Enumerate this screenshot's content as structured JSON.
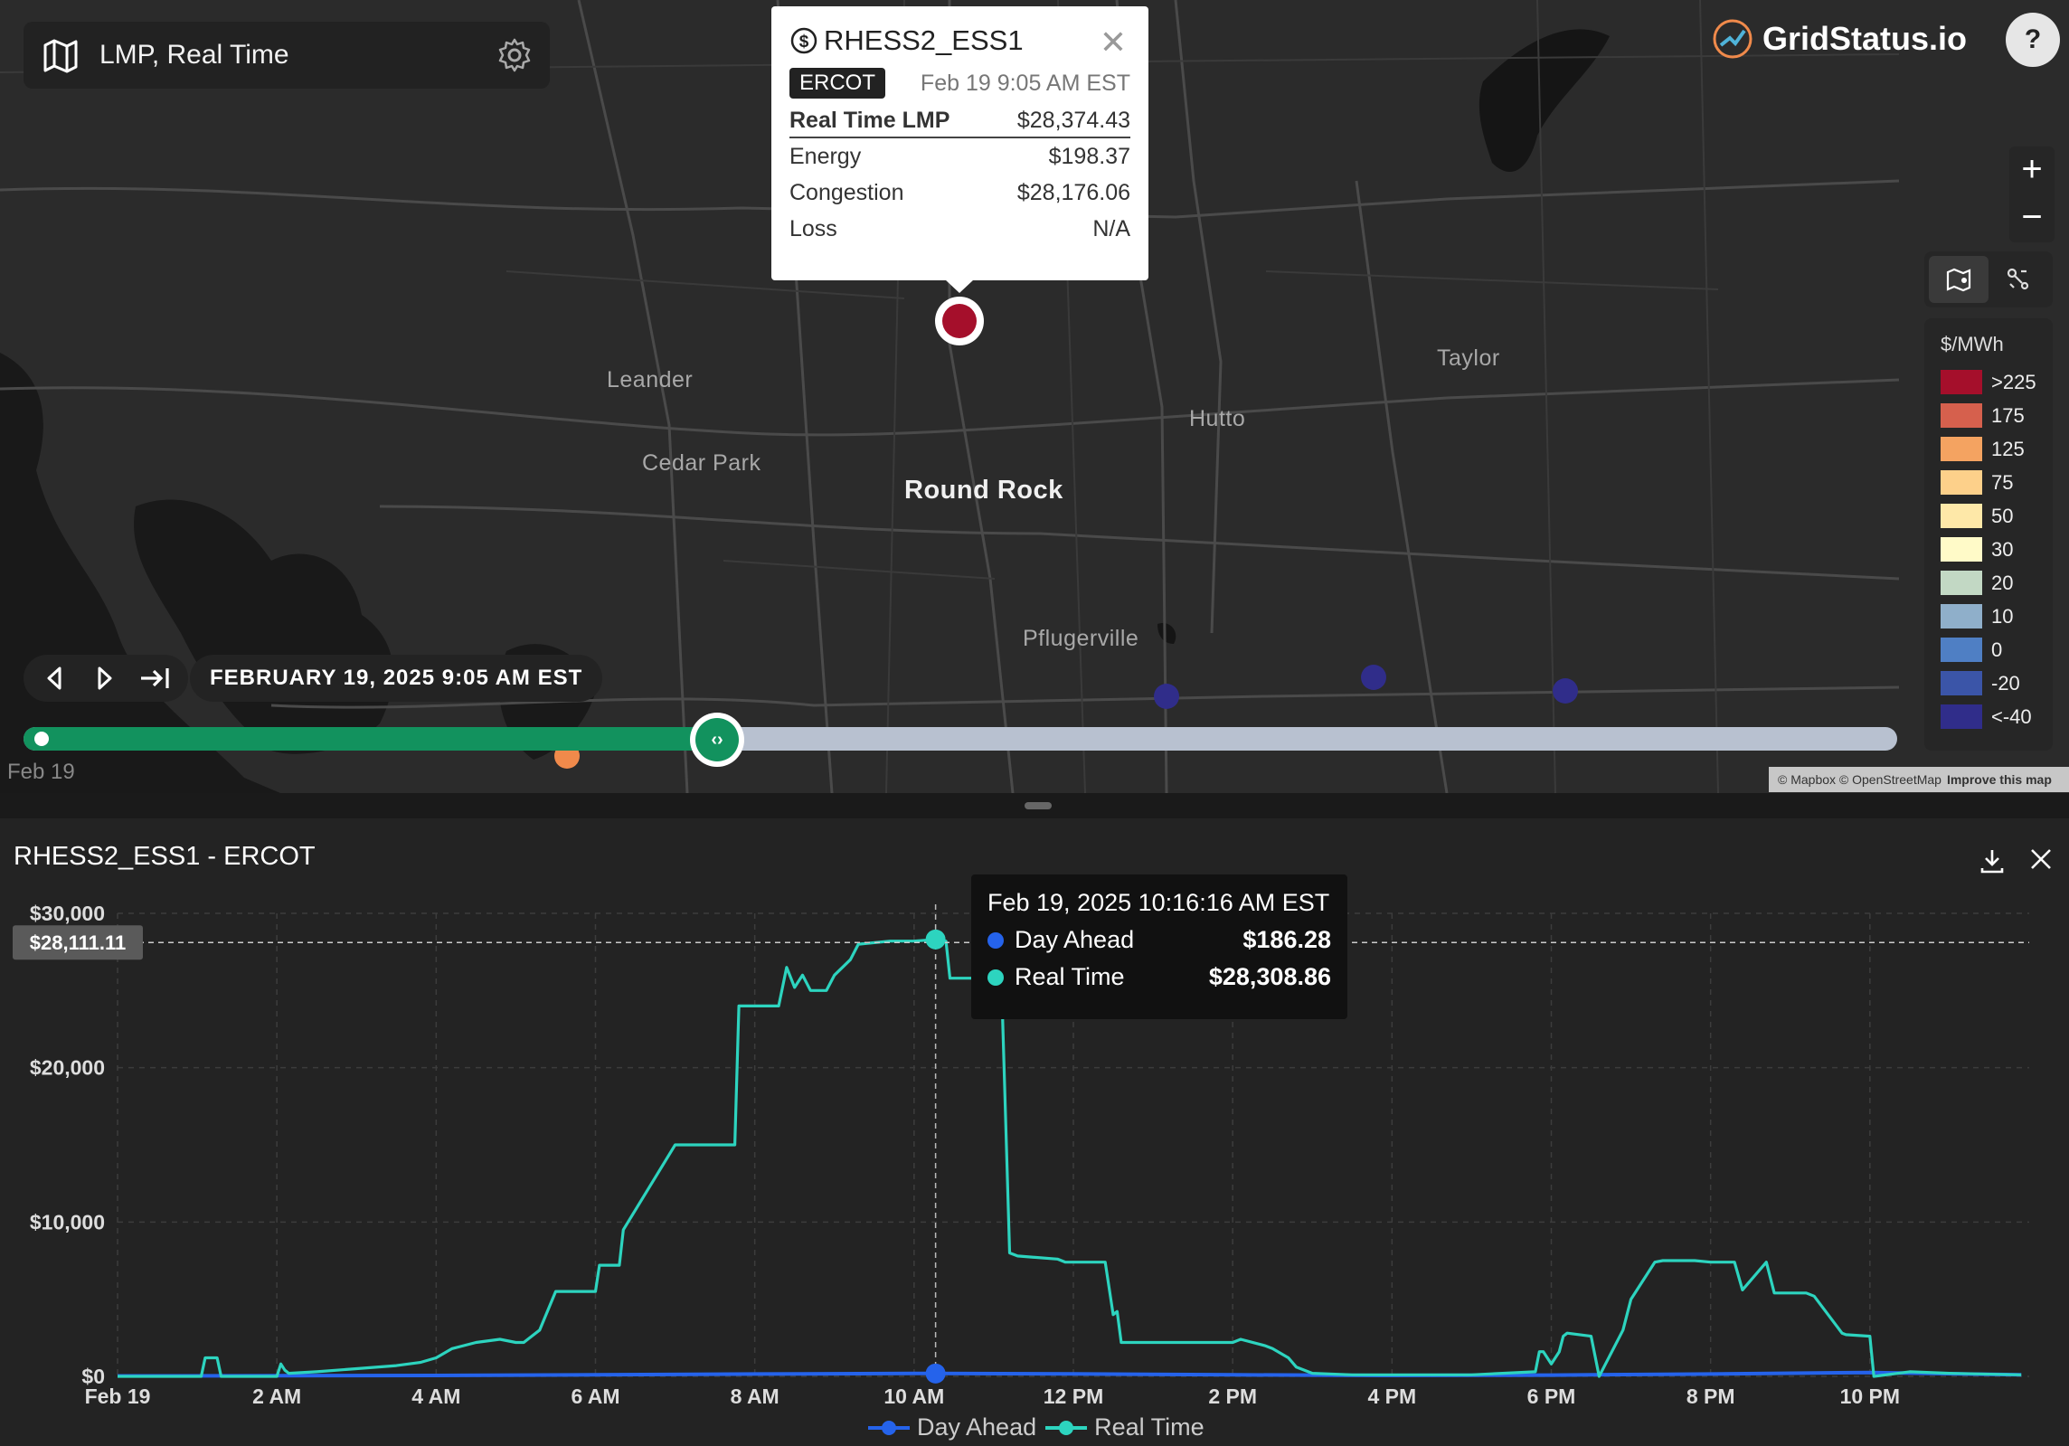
{
  "map": {
    "layer_title": "LMP, Real Time",
    "brand": "GridStatus.io",
    "help_label": "?",
    "zoom_in": "+",
    "zoom_out": "−",
    "places": {
      "leander": "Leander",
      "cedar_park": "Cedar Park",
      "round_rock": "Round Rock",
      "hutto": "Hutto",
      "taylor": "Taylor",
      "pflugerville": "Pflugerville"
    },
    "legend": {
      "unit": "$/MWh",
      "items": [
        {
          "label": ">225",
          "color": "#a50f2b"
        },
        {
          "label": "175",
          "color": "#d6604d"
        },
        {
          "label": "125",
          "color": "#f4a361"
        },
        {
          "label": "75",
          "color": "#fdd08a"
        },
        {
          "label": "50",
          "color": "#fee8a8"
        },
        {
          "label": "30",
          "color": "#fffac8"
        },
        {
          "label": "20",
          "color": "#c2d8c4"
        },
        {
          "label": "10",
          "color": "#8fafca"
        },
        {
          "label": "0",
          "color": "#4f7fc4"
        },
        {
          "label": "-20",
          "color": "#3b55a8"
        },
        {
          "label": "<-40",
          "color": "#302d8a"
        }
      ]
    },
    "popup": {
      "node": "RHESS2_ESS1",
      "iso": "ERCOT",
      "timestamp": "Feb 19 9:05 AM EST",
      "close": "✕",
      "rows": [
        {
          "label": "Real Time LMP",
          "value": "$28,374.43"
        },
        {
          "label": "Energy",
          "value": "$198.37"
        },
        {
          "label": "Congestion",
          "value": "$28,176.06"
        },
        {
          "label": "Loss",
          "value": "N/A"
        }
      ]
    },
    "time_label": "FEBRUARY 19, 2025 9:05 AM EST",
    "timeline_start": "Feb 19",
    "timeline_progress": 0.37,
    "attribution": "© Mapbox © OpenStreetMap",
    "attribution_link": "Improve this map"
  },
  "chart_panel": {
    "title": "RHESS2_ESS1 - ERCOT",
    "crosshair_label": "$28,111.11",
    "tooltip": {
      "time": "Feb 19, 2025 10:16:16 AM EST",
      "rows": [
        {
          "name": "Day Ahead",
          "value": "$186.28",
          "color": "#2563eb"
        },
        {
          "name": "Real Time",
          "value": "$28,308.86",
          "color": "#2dd4bf"
        }
      ]
    }
  },
  "chart_data": {
    "type": "line",
    "xlabel": "",
    "ylabel": "",
    "xlim": [
      0,
      24
    ],
    "ylim": [
      0,
      30000
    ],
    "x_ticks": [
      "Feb 19",
      "2 AM",
      "4 AM",
      "6 AM",
      "8 AM",
      "10 AM",
      "12 PM",
      "2 PM",
      "4 PM",
      "6 PM",
      "8 PM",
      "10 PM"
    ],
    "y_ticks": [
      "$0",
      "$10,000",
      "$20,000",
      "$30,000"
    ],
    "grid": true,
    "legend": "bottom",
    "series": [
      {
        "name": "Day Ahead",
        "color": "#2563eb",
        "x": [
          0,
          2,
          4,
          6,
          8,
          10,
          10.27,
          12,
          14,
          16,
          18,
          20,
          22,
          23.9
        ],
        "values": [
          30,
          40,
          60,
          100,
          150,
          190,
          186,
          160,
          100,
          60,
          80,
          150,
          250,
          100
        ]
      },
      {
        "name": "Real Time",
        "color": "#2dd4bf",
        "x": [
          0,
          1.05,
          1.1,
          1.25,
          1.3,
          2.0,
          2.05,
          2.1,
          2.15,
          2.5,
          3.0,
          3.5,
          3.8,
          4.0,
          4.2,
          4.5,
          4.8,
          5.0,
          5.1,
          5.2,
          5.3,
          5.5,
          6.0,
          6.05,
          6.3,
          6.35,
          7.0,
          7.05,
          7.4,
          7.45,
          7.75,
          7.8,
          8.25,
          8.3,
          8.4,
          8.5,
          8.6,
          8.7,
          8.9,
          9.0,
          9.2,
          9.3,
          9.7,
          10.0,
          10.27,
          10.4,
          10.45,
          10.8,
          10.9,
          11.1,
          11.2,
          11.3,
          11.8,
          11.9,
          12.4,
          12.5,
          12.55,
          12.6,
          13.5,
          14.0,
          14.1,
          14.4,
          14.5,
          14.7,
          14.8,
          15.0,
          15.5,
          16.0,
          17.0,
          17.8,
          17.85,
          17.9,
          18.0,
          18.1,
          18.15,
          18.2,
          18.5,
          18.6,
          18.9,
          19.0,
          19.3,
          19.4,
          19.8,
          20.0,
          20.3,
          20.4,
          20.7,
          20.8,
          21.2,
          21.3,
          21.65,
          21.7,
          22.0,
          22.05,
          22.5,
          23.0,
          23.9
        ],
        "values": [
          0,
          0,
          1200,
          1200,
          0,
          0,
          800,
          400,
          200,
          300,
          500,
          700,
          900,
          1200,
          1800,
          2200,
          2400,
          2200,
          2200,
          2600,
          3000,
          5500,
          5500,
          7200,
          7200,
          9500,
          15000,
          15000,
          15000,
          15000,
          15000,
          24000,
          24000,
          24000,
          26500,
          25200,
          26000,
          25000,
          25000,
          26000,
          27000,
          28000,
          28200,
          28200,
          28308,
          28200,
          25800,
          25800,
          25600,
          25200,
          8000,
          7800,
          7600,
          7400,
          7400,
          4000,
          4200,
          2200,
          2200,
          2200,
          2400,
          2000,
          1800,
          1200,
          600,
          200,
          100,
          100,
          100,
          300,
          1600,
          1600,
          800,
          1600,
          2600,
          2800,
          2600,
          0,
          3000,
          5000,
          7400,
          7500,
          7500,
          7400,
          7400,
          5600,
          7400,
          5400,
          5400,
          5200,
          2800,
          2700,
          2600,
          0,
          300,
          200,
          100
        ]
      }
    ]
  }
}
